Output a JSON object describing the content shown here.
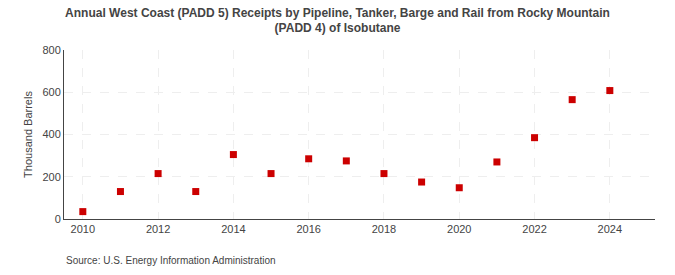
{
  "chart_data": {
    "type": "scatter",
    "title": "Annual West Coast (PADD 5) Receipts by Pipeline, Tanker, Barge and Rail from Rocky Mountain\n(PADD 4) of Isobutane",
    "y_label": "Thousand Barrels",
    "annotations": [
      "Source: U.S. Energy Information Administration"
    ],
    "x": [
      2010,
      2011,
      2012,
      2013,
      2014,
      2015,
      2016,
      2017,
      2018,
      2019,
      2020,
      2021,
      2022,
      2023,
      2024
    ],
    "values": [
      35,
      130,
      215,
      130,
      305,
      215,
      285,
      275,
      215,
      175,
      148,
      270,
      385,
      565,
      608
    ],
    "color": "#cc0000",
    "marker": "square",
    "xlim": [
      2009.5,
      2025.2
    ],
    "xticks": [
      2010,
      2012,
      2014,
      2016,
      2018,
      2020,
      2022,
      2024
    ],
    "ylim": [
      0,
      800
    ],
    "yticks": [
      0,
      200,
      400,
      600,
      800
    ],
    "grid": true
  }
}
